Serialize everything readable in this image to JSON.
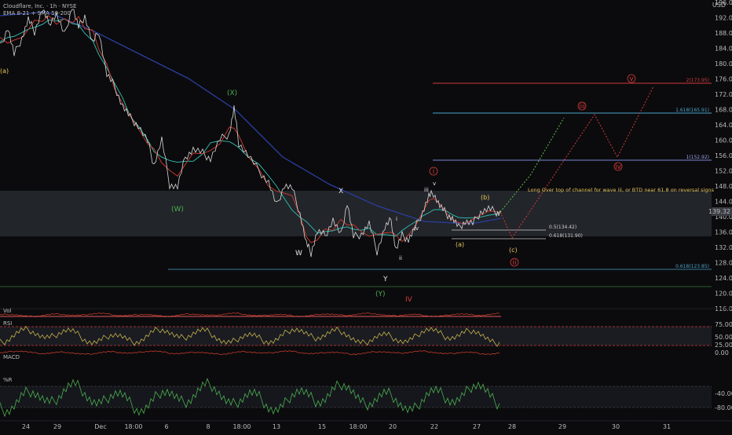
{
  "header": {
    "symbol_line": "Cloudflare, Inc. · 1h · NYSE",
    "indicators_line": "EMA 8-21 + SMA 50-200",
    "currency": "USD"
  },
  "price_axis": {
    "ticks": [
      "196.00",
      "192.00",
      "188.00",
      "184.00",
      "180.00",
      "176.00",
      "172.00",
      "168.00",
      "164.00",
      "160.00",
      "156.00",
      "152.00",
      "148.00",
      "144.00",
      "140.00",
      "136.00",
      "132.00",
      "128.00",
      "124.00",
      "120.00",
      "116.00"
    ],
    "last_price": "139.32"
  },
  "time_axis": {
    "ticks": [
      "24",
      "29",
      "Dec",
      "18:00",
      "6",
      "8",
      "18:00",
      "13",
      "15",
      "18:00",
      "20",
      "22",
      "27",
      "28",
      "29",
      "30",
      "31"
    ]
  },
  "annotation": {
    "note": "Long Over top of channel for wave iii, or BTD near 61.8 on reversal signs"
  },
  "fib_levels": [
    {
      "label": "2(173.95)",
      "color": "#d33a3a"
    },
    {
      "label": "1.618(165.91)",
      "color": "#4aa3c8"
    },
    {
      "label": "1(152.92)",
      "color": "#7b86d9"
    },
    {
      "label": "0.5(134.42)",
      "color": "#cfcfcf"
    },
    {
      "label": "0.618(131.90)",
      "color": "#cfcfcf"
    },
    {
      "label": "0.618(123.85)",
      "color": "#4aa3c8"
    }
  ],
  "waves": {
    "a_left": "(a)",
    "x_paren": "(X)",
    "w_paren": "(W)",
    "w": "W",
    "x": "X",
    "y": "Y",
    "y_paren": "(Y)",
    "iv_cap": "IV",
    "i_circ": "i",
    "ii_circ": "ii",
    "iii_circ": "iii",
    "iv_circ": "iv",
    "v_circ": "v",
    "i_small": "i",
    "ii_small": "ii",
    "iii_small": "iii",
    "iv_small": "iv",
    "v_small": "v",
    "b_paren": "(b)",
    "a_paren": "(a)",
    "c_paren": "(c)"
  },
  "panels": {
    "vol_label": "Vol",
    "rsi_label": "RSI",
    "rsi_ticks": [
      "75.00",
      "50.00",
      "25.00"
    ],
    "macd_label": "MACD",
    "macd_ticks": [
      "0.00"
    ],
    "wr_label": "%R",
    "wr_ticks": [
      "-40.00",
      "-80.00"
    ]
  },
  "colors": {
    "background": "#0b0b0d",
    "price": "#d8d8d8",
    "ema_fast": "#c0392b",
    "ema_slow": "#2fb3a8",
    "sma50": "#2a3ea0",
    "zone": "#2a2d33",
    "rsi": "#c9b24a",
    "wr": "#4caf50",
    "projection_green": "#5bbd4a",
    "projection_red": "#d33a3a"
  },
  "chart_data": {
    "type": "line",
    "title": "Cloudflare, Inc. · 1h · NYSE",
    "ylim": [
      114,
      198
    ],
    "series": [
      {
        "name": "EMA 8-21 + SMA 50-200",
        "values": []
      }
    ],
    "key_levels": [
      173.95,
      165.91,
      152.92,
      134.42,
      131.9,
      123.85
    ],
    "zone": [
      133,
      145
    ]
  }
}
